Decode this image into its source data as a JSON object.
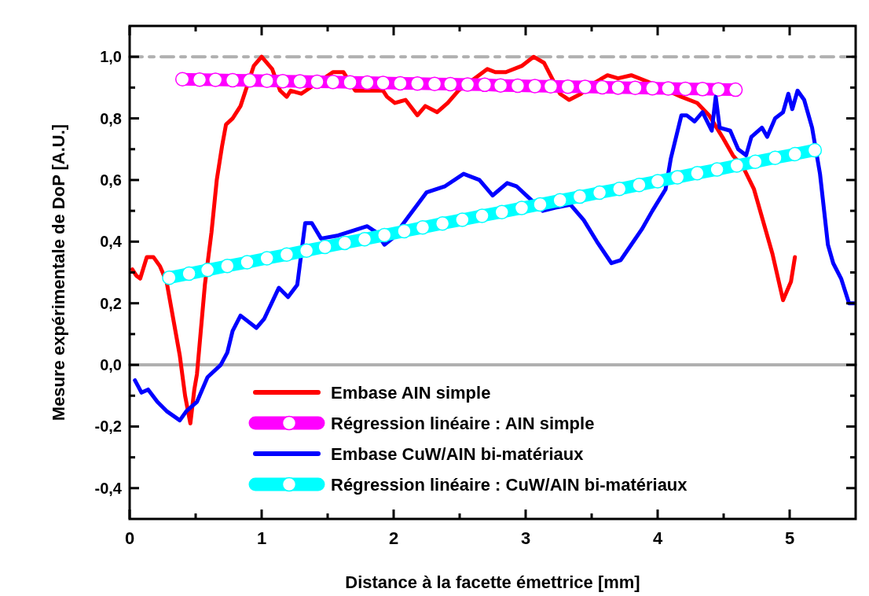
{
  "chart_data": {
    "type": "line",
    "xlabel": "Distance à la facette émettrice [mm]",
    "ylabel": "Mesure expérimentale de DoP [A.U.]",
    "xlim": [
      0,
      5.5
    ],
    "xticks": [
      0,
      {
        "value": 0.5,
        "label": null
      },
      1,
      {
        "value": 1.5,
        "label": null
      },
      2,
      {
        "value": 2.5,
        "label": null
      },
      3,
      {
        "value": 3.5,
        "label": null
      },
      4,
      {
        "value": 4.5,
        "label": null
      },
      5
    ],
    "ylim": [
      -0.5,
      1.1
    ],
    "yticks": [
      {
        "value": -0.4,
        "label": "-0,4"
      },
      {
        "value": -0.3,
        "label": null
      },
      {
        "value": -0.2,
        "label": "-0,2"
      },
      {
        "value": -0.1,
        "label": null
      },
      {
        "value": 0,
        "label": "0,0"
      },
      {
        "value": 0.1,
        "label": null
      },
      {
        "value": 0.2,
        "label": "0,2"
      },
      {
        "value": 0.3,
        "label": null
      },
      {
        "value": 0.4,
        "label": "0,4"
      },
      {
        "value": 0.5,
        "label": null
      },
      {
        "value": 0.6,
        "label": "0,6"
      },
      {
        "value": 0.7,
        "label": null
      },
      {
        "value": 0.8,
        "label": "0,8"
      },
      {
        "value": 0.9,
        "label": null
      },
      {
        "value": 1.0,
        "label": "1,0"
      }
    ],
    "grid": false,
    "legend": "bottom",
    "ref_lines": [
      {
        "axis": "y",
        "value": 1.0,
        "color": "#b0b0b0",
        "line_style": "dashed"
      },
      {
        "axis": "y",
        "value": 0,
        "color": "#b0b0b0",
        "line_style": "solid"
      }
    ],
    "series": [
      {
        "name": "Embase AIN simple",
        "color": "#ff0000",
        "marker": "none",
        "line_style": "solid",
        "x": [
          0.02,
          0.05,
          0.08,
          0.13,
          0.18,
          0.23,
          0.28,
          0.33,
          0.38,
          0.42,
          0.46,
          0.49,
          0.51,
          0.57,
          0.62,
          0.66,
          0.7,
          0.73,
          0.78,
          0.84,
          0.94,
          1.0,
          1.08,
          1.14,
          1.19,
          1.22,
          1.3,
          1.54,
          1.62,
          1.71,
          1.82,
          1.92,
          1.95,
          2.01,
          2.09,
          2.18,
          2.24,
          2.33,
          2.41,
          2.49,
          2.71,
          2.77,
          2.85,
          2.97,
          3.06,
          3.14,
          3.2,
          3.26,
          3.33,
          3.42,
          3.5,
          3.62,
          3.7,
          3.8,
          3.92,
          4.18,
          4.3,
          4.39,
          4.49,
          4.57,
          4.65,
          4.73,
          4.79,
          4.87,
          4.95,
          5.01,
          5.04
        ],
        "values": [
          0.31,
          0.29,
          0.28,
          0.35,
          0.35,
          0.32,
          0.27,
          0.15,
          0.03,
          -0.1,
          -0.19,
          -0.08,
          -0.03,
          0.26,
          0.43,
          0.6,
          0.71,
          0.78,
          0.8,
          0.84,
          0.97,
          1.0,
          0.96,
          0.89,
          0.87,
          0.89,
          0.88,
          0.95,
          0.95,
          0.89,
          0.89,
          0.89,
          0.87,
          0.85,
          0.86,
          0.81,
          0.84,
          0.82,
          0.85,
          0.89,
          0.96,
          0.95,
          0.95,
          0.97,
          1.0,
          0.98,
          0.93,
          0.88,
          0.86,
          0.88,
          0.91,
          0.94,
          0.93,
          0.94,
          0.92,
          0.87,
          0.85,
          0.81,
          0.74,
          0.68,
          0.64,
          0.57,
          0.48,
          0.36,
          0.21,
          0.27,
          0.35
        ]
      },
      {
        "name": "Régression linéaire : AIN simple",
        "color": "#ff00ff",
        "marker": "circle",
        "line_style": "solid",
        "x": [
          0.4,
          0.53,
          0.65,
          0.78,
          0.91,
          1.04,
          1.16,
          1.29,
          1.42,
          1.54,
          1.67,
          1.8,
          1.92,
          2.05,
          2.18,
          2.31,
          2.43,
          2.56,
          2.69,
          2.81,
          2.94,
          3.07,
          3.19,
          3.32,
          3.45,
          3.58,
          3.7,
          3.83,
          3.96,
          4.08,
          4.21,
          4.34,
          4.46,
          4.59
        ],
        "values": [
          0.927,
          0.926,
          0.925,
          0.924,
          0.923,
          0.922,
          0.921,
          0.92,
          0.919,
          0.918,
          0.917,
          0.916,
          0.915,
          0.914,
          0.913,
          0.912,
          0.911,
          0.91,
          0.909,
          0.907,
          0.906,
          0.905,
          0.904,
          0.903,
          0.902,
          0.901,
          0.9,
          0.899,
          0.898,
          0.897,
          0.896,
          0.895,
          0.894,
          0.893
        ]
      },
      {
        "name": "Embase CuW/AIN bi-matériaux",
        "color": "#0000ff",
        "marker": "none",
        "line_style": "solid",
        "x": [
          0.04,
          0.09,
          0.14,
          0.21,
          0.28,
          0.38,
          0.43,
          0.51,
          0.59,
          0.69,
          0.74,
          0.78,
          0.84,
          0.96,
          1.02,
          1.13,
          1.2,
          1.27,
          1.33,
          1.38,
          1.45,
          1.58,
          1.8,
          1.87,
          1.93,
          1.99,
          2.11,
          2.25,
          2.39,
          2.53,
          2.65,
          2.75,
          2.86,
          2.93,
          3.03,
          3.13,
          3.22,
          3.34,
          3.44,
          3.54,
          3.65,
          3.72,
          3.8,
          3.88,
          3.96,
          4.06,
          4.1,
          4.18,
          4.22,
          4.28,
          4.34,
          4.41,
          4.44,
          4.47,
          4.55,
          4.61,
          4.67,
          4.71,
          4.79,
          4.83,
          4.89,
          4.95,
          4.99,
          5.02,
          5.06,
          5.11,
          5.17,
          5.23,
          5.29,
          5.33,
          5.39,
          5.45,
          5.49
        ],
        "values": [
          -0.05,
          -0.09,
          -0.08,
          -0.12,
          -0.15,
          -0.18,
          -0.15,
          -0.12,
          -0.04,
          0.0,
          0.04,
          0.11,
          0.16,
          0.12,
          0.15,
          0.25,
          0.22,
          0.26,
          0.46,
          0.46,
          0.41,
          0.42,
          0.45,
          0.43,
          0.39,
          0.41,
          0.48,
          0.56,
          0.58,
          0.62,
          0.6,
          0.55,
          0.59,
          0.58,
          0.54,
          0.5,
          0.51,
          0.52,
          0.47,
          0.4,
          0.33,
          0.34,
          0.39,
          0.44,
          0.5,
          0.57,
          0.67,
          0.81,
          0.81,
          0.79,
          0.82,
          0.76,
          0.87,
          0.77,
          0.76,
          0.7,
          0.68,
          0.74,
          0.77,
          0.74,
          0.8,
          0.82,
          0.88,
          0.83,
          0.89,
          0.86,
          0.77,
          0.62,
          0.39,
          0.33,
          0.28,
          0.2,
          0.2
        ]
      },
      {
        "name": "Régression linéaire : CuW/AIN bi-matériaux",
        "color": "#00ffff",
        "marker": "circle",
        "line_style": "solid",
        "x": [
          0.3,
          0.45,
          0.59,
          0.74,
          0.89,
          1.04,
          1.19,
          1.34,
          1.48,
          1.63,
          1.78,
          1.93,
          2.08,
          2.22,
          2.37,
          2.52,
          2.67,
          2.82,
          2.97,
          3.11,
          3.26,
          3.41,
          3.56,
          3.71,
          3.86,
          4.0,
          4.15,
          4.3,
          4.45,
          4.6,
          4.74,
          4.89,
          5.04,
          5.19
        ],
        "values": [
          0.283,
          0.296,
          0.308,
          0.321,
          0.333,
          0.346,
          0.358,
          0.371,
          0.383,
          0.396,
          0.408,
          0.421,
          0.434,
          0.446,
          0.459,
          0.471,
          0.484,
          0.496,
          0.509,
          0.521,
          0.534,
          0.546,
          0.559,
          0.571,
          0.584,
          0.596,
          0.609,
          0.622,
          0.634,
          0.647,
          0.659,
          0.672,
          0.684,
          0.697
        ]
      }
    ]
  }
}
